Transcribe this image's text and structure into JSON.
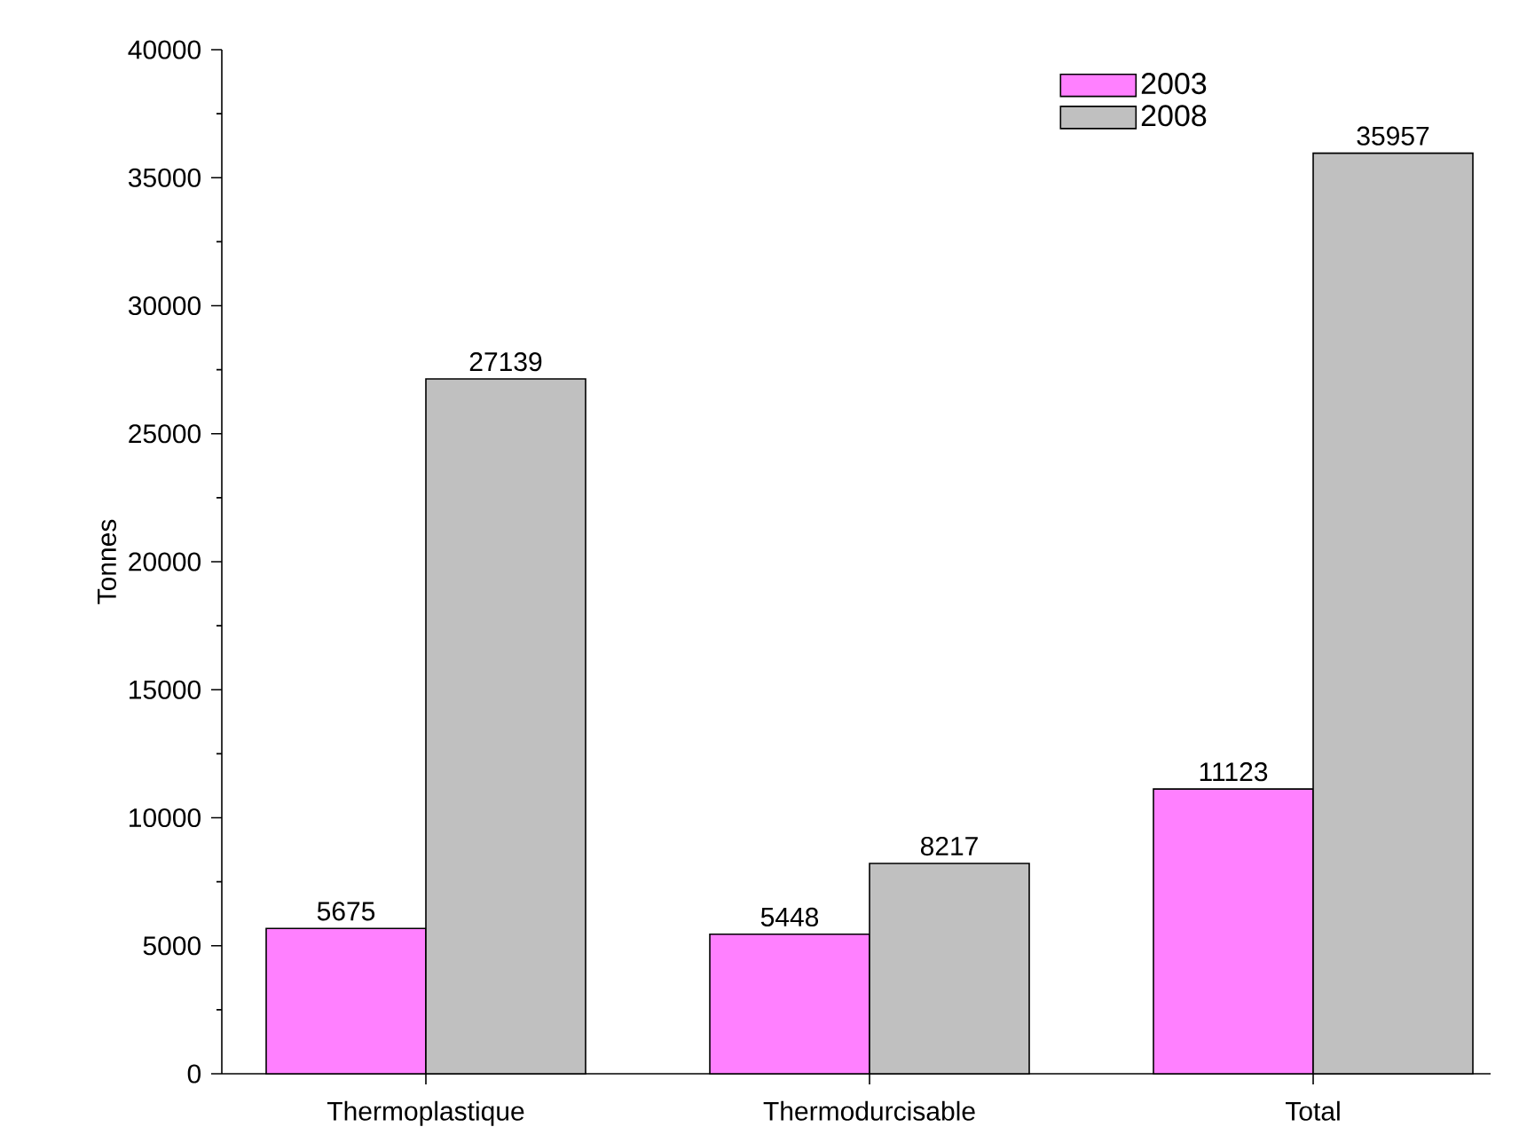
{
  "chart_data": {
    "type": "bar",
    "ylabel": "Tonnes",
    "categories": [
      "Thermoplastique",
      "Thermodurcisable",
      "Total"
    ],
    "series": [
      {
        "name": "2003",
        "color": "#ff80ff",
        "values": [
          5675,
          5448,
          11123
        ]
      },
      {
        "name": "2008",
        "color": "#c0c0c0",
        "values": [
          27139,
          8217,
          35957
        ]
      }
    ],
    "ylim": [
      0,
      40000
    ],
    "yticks": [
      0,
      5000,
      10000,
      15000,
      20000,
      25000,
      30000,
      35000,
      40000
    ],
    "data_labels": true,
    "legend": "top right"
  }
}
